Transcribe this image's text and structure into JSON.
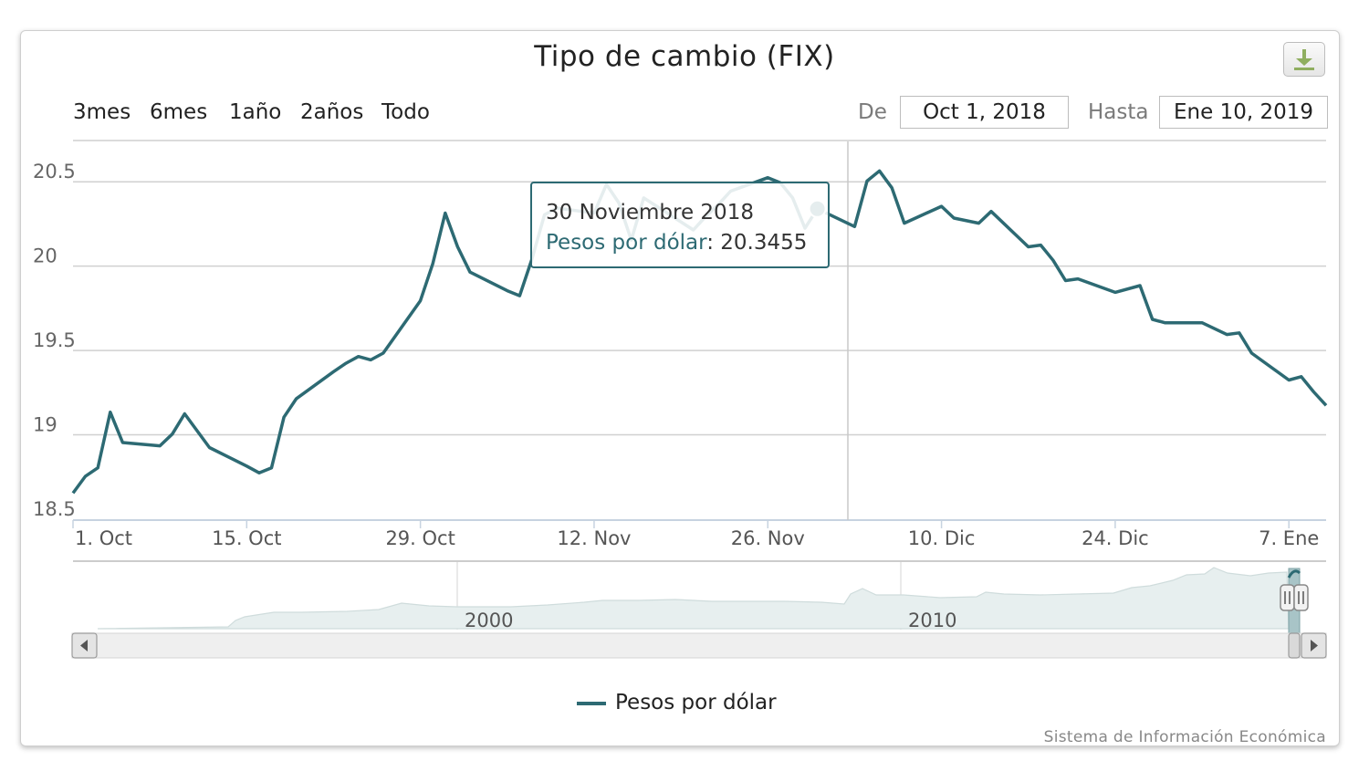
{
  "chart_data": {
    "type": "line",
    "title": "Tipo de cambio (FIX)",
    "series": [
      {
        "name": "Pesos por dólar",
        "color": "#2d6a73",
        "x": [
          "2018-10-01",
          "2018-10-02",
          "2018-10-03",
          "2018-10-04",
          "2018-10-05",
          "2018-10-08",
          "2018-10-09",
          "2018-10-10",
          "2018-10-11",
          "2018-10-12",
          "2018-10-15",
          "2018-10-16",
          "2018-10-17",
          "2018-10-18",
          "2018-10-19",
          "2018-10-22",
          "2018-10-23",
          "2018-10-24",
          "2018-10-25",
          "2018-10-26",
          "2018-10-29",
          "2018-10-30",
          "2018-10-31",
          "2018-11-01",
          "2018-11-02",
          "2018-11-05",
          "2018-11-06",
          "2018-11-07",
          "2018-11-08",
          "2018-11-09",
          "2018-11-12",
          "2018-11-13",
          "2018-11-14",
          "2018-11-15",
          "2018-11-16",
          "2018-11-20",
          "2018-11-21",
          "2018-11-22",
          "2018-11-23",
          "2018-11-26",
          "2018-11-27",
          "2018-11-28",
          "2018-11-29",
          "2018-11-30",
          "2018-12-03",
          "2018-12-04",
          "2018-12-05",
          "2018-12-06",
          "2018-12-07",
          "2018-12-10",
          "2018-12-11",
          "2018-12-13",
          "2018-12-14",
          "2018-12-17",
          "2018-12-18",
          "2018-12-19",
          "2018-12-20",
          "2018-12-21",
          "2018-12-24",
          "2018-12-26",
          "2018-12-27",
          "2018-12-28",
          "2018-12-31",
          "2019-01-02",
          "2019-01-03",
          "2019-01-04",
          "2019-01-07",
          "2019-01-08",
          "2019-01-09",
          "2019-01-10"
        ],
        "values": [
          18.66,
          18.76,
          18.81,
          19.14,
          18.96,
          18.94,
          19.01,
          19.13,
          19.03,
          18.93,
          18.82,
          18.78,
          18.81,
          19.11,
          19.22,
          19.38,
          19.43,
          19.47,
          19.45,
          19.49,
          19.8,
          20.02,
          20.32,
          20.12,
          19.97,
          19.86,
          19.83,
          20.05,
          20.31,
          20.35,
          20.32,
          20.49,
          20.38,
          20.16,
          20.41,
          20.22,
          20.3,
          20.37,
          20.45,
          20.53,
          20.5,
          20.41,
          20.23,
          20.3455,
          20.24,
          20.51,
          20.57,
          20.47,
          20.26,
          20.36,
          20.29,
          20.26,
          20.33,
          20.12,
          20.13,
          20.04,
          19.92,
          19.93,
          19.85,
          19.89,
          19.69,
          19.67,
          19.67,
          19.6,
          19.61,
          19.49,
          19.33,
          19.35,
          19.26,
          19.18
        ]
      }
    ],
    "x_ticks": [
      "1. Oct",
      "15. Oct",
      "29. Oct",
      "12. Nov",
      "26. Nov",
      "10. Dic",
      "24. Dic",
      "7. Ene"
    ],
    "x_tick_dates": [
      "2018-10-01",
      "2018-10-15",
      "2018-10-29",
      "2018-11-12",
      "2018-11-26",
      "2018-12-10",
      "2018-12-24",
      "2019-01-07"
    ],
    "y_ticks": [
      "18.5",
      "19",
      "19.5",
      "20",
      "20.5"
    ],
    "ylim": [
      18.5,
      20.75
    ],
    "xlim": [
      "2018-10-01",
      "2019-01-10"
    ],
    "grid": true,
    "legend_position": "bottom"
  },
  "range_selector": {
    "buttons": [
      "3mes",
      "6mes",
      "1año",
      "2años",
      "Todo"
    ],
    "from_label": "De",
    "from_value": "Oct 1, 2018",
    "to_label": "Hasta",
    "to_value": "Ene 10, 2019"
  },
  "tooltip": {
    "date": "30 Noviembre 2018",
    "series_label": "Pesos por dólar",
    "value": "20.3455"
  },
  "navigator": {
    "labels": [
      "2000",
      "2010"
    ]
  },
  "legend": {
    "label": "Pesos por dólar"
  },
  "credits": "Sistema de Información Económica",
  "colors": {
    "series": "#2d6a73",
    "grid": "#cfcfcf",
    "navigator_fill": "#e7efef"
  },
  "icons": {
    "download": "download-icon",
    "scroll_left": "arrow-left-icon",
    "scroll_right": "arrow-right-icon"
  }
}
